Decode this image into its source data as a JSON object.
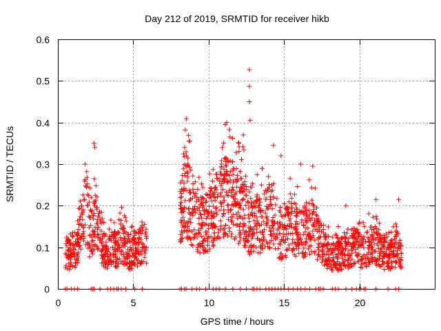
{
  "chart_data": {
    "type": "scatter",
    "title": "Day 212 of 2019, SRMTID for receiver hikb",
    "xlabel": "GPS time / hours",
    "ylabel": "SRMTID / TECUs",
    "xlim": [
      0,
      25
    ],
    "ylim": [
      0,
      0.6
    ],
    "xticks": [
      0,
      5,
      10,
      15,
      20
    ],
    "yticks": [
      0,
      0.1,
      0.2,
      0.3,
      0.4,
      0.5,
      0.6
    ],
    "xtick_labels": [
      "0",
      "5",
      "10",
      "15",
      "20"
    ],
    "ytick_labels": [
      "0",
      "0.1",
      "0.2",
      "0.3",
      "0.4",
      "0.5",
      "0.6"
    ],
    "grid": true,
    "marker": "+",
    "color": "#ff0000",
    "series": [
      {
        "name": "SRMTID",
        "segments": [
          {
            "x_start": 0.5,
            "x_end": 5.9,
            "profile": [
              [
                0.5,
                0.09
              ],
              [
                0.8,
                0.08
              ],
              [
                1.0,
                0.09
              ],
              [
                1.3,
                0.1
              ],
              [
                1.6,
                0.15
              ],
              [
                1.9,
                0.2
              ],
              [
                2.1,
                0.14
              ],
              [
                2.3,
                0.12
              ],
              [
                2.5,
                0.18
              ],
              [
                2.7,
                0.13
              ],
              [
                3.0,
                0.1
              ],
              [
                3.3,
                0.08
              ],
              [
                3.6,
                0.1
              ],
              [
                3.9,
                0.09
              ],
              [
                4.2,
                0.11
              ],
              [
                4.5,
                0.1
              ],
              [
                4.8,
                0.08
              ],
              [
                5.1,
                0.09
              ],
              [
                5.4,
                0.1
              ],
              [
                5.7,
                0.11
              ],
              [
                5.9,
                0.1
              ]
            ]
          },
          {
            "x_start": 8.1,
            "x_end": 22.8,
            "profile": [
              [
                8.1,
                0.2
              ],
              [
                8.5,
                0.23
              ],
              [
                8.8,
                0.2
              ],
              [
                9.1,
                0.16
              ],
              [
                9.5,
                0.15
              ],
              [
                9.9,
                0.16
              ],
              [
                10.3,
                0.18
              ],
              [
                10.7,
                0.21
              ],
              [
                11.1,
                0.22
              ],
              [
                11.5,
                0.22
              ],
              [
                11.9,
                0.2
              ],
              [
                12.3,
                0.19
              ],
              [
                12.7,
                0.15
              ],
              [
                13.1,
                0.15
              ],
              [
                13.5,
                0.16
              ],
              [
                13.9,
                0.18
              ],
              [
                14.3,
                0.16
              ],
              [
                14.7,
                0.13
              ],
              [
                15.0,
                0.12
              ],
              [
                15.4,
                0.16
              ],
              [
                15.8,
                0.14
              ],
              [
                16.2,
                0.13
              ],
              [
                16.6,
                0.15
              ],
              [
                17.0,
                0.14
              ],
              [
                17.4,
                0.11
              ],
              [
                17.8,
                0.09
              ],
              [
                18.2,
                0.08
              ],
              [
                18.6,
                0.08
              ],
              [
                19.0,
                0.09
              ],
              [
                19.4,
                0.09
              ],
              [
                19.8,
                0.1
              ],
              [
                20.2,
                0.09
              ],
              [
                20.6,
                0.1
              ],
              [
                21.0,
                0.11
              ],
              [
                21.4,
                0.09
              ],
              [
                21.8,
                0.08
              ],
              [
                22.2,
                0.08
              ],
              [
                22.5,
                0.1
              ],
              [
                22.8,
                0.07
              ]
            ]
          }
        ],
        "peaks": [
          [
            2.4,
            0.35
          ],
          [
            2.45,
            0.34
          ],
          [
            1.8,
            0.3
          ],
          [
            8.4,
            0.34
          ],
          [
            10.9,
            0.34
          ],
          [
            11.2,
            0.4
          ],
          [
            12.0,
            0.35
          ],
          [
            12.3,
            0.37
          ],
          [
            12.7,
            0.527
          ],
          [
            12.7,
            0.487
          ],
          [
            12.7,
            0.45
          ],
          [
            12.75,
            0.405
          ],
          [
            14.3,
            0.345
          ],
          [
            14.8,
            0.32
          ],
          [
            16.1,
            0.3
          ],
          [
            16.9,
            0.295
          ],
          [
            18.6,
            0.15
          ],
          [
            19.1,
            0.2
          ],
          [
            21.1,
            0.215
          ],
          [
            22.6,
            0.215
          ]
        ],
        "zero_values_x": [
          0.5,
          0.6,
          0.9,
          1.1,
          1.3,
          2.2,
          2.3,
          2.4,
          2.8,
          3.3,
          3.5,
          3.7,
          3.9,
          4.0,
          4.2,
          4.5,
          5.1,
          5.6,
          8.1,
          8.2,
          8.4,
          8.5,
          8.9,
          9.2,
          9.4,
          9.8,
          10.3,
          10.5,
          10.7,
          11.1,
          11.6,
          12.1,
          12.5,
          12.9,
          13.0,
          13.2,
          13.4,
          13.8,
          14.0,
          14.2,
          14.4,
          14.6,
          14.8,
          15.0,
          15.3,
          15.6,
          15.9,
          16.1,
          16.4,
          16.7,
          17.1,
          17.3,
          17.4,
          17.6,
          18.2,
          18.4,
          18.6,
          19.1,
          19.5,
          19.8,
          20.0,
          20.1,
          20.3,
          20.4,
          21.1,
          21.9,
          22.4,
          22.6
        ]
      }
    ]
  }
}
